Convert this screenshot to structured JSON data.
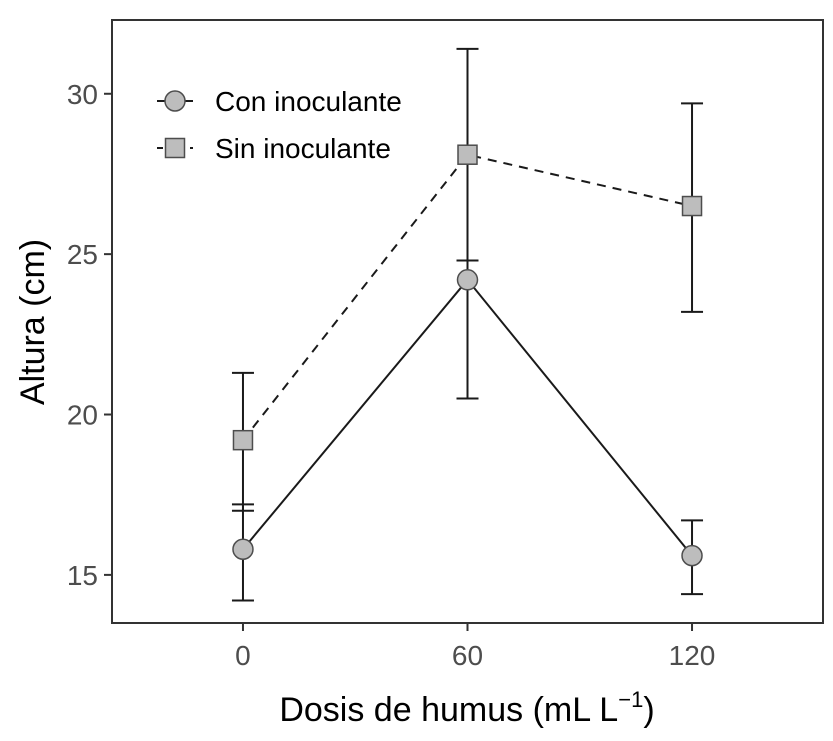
{
  "chart_data": {
    "type": "line",
    "title": "",
    "x": [
      0,
      60,
      120
    ],
    "xlabel": "Dosis de humus (mL L",
    "xlabel_superscript": "−1",
    "xlabel_suffix": ")",
    "ylabel": "Altura (cm)",
    "xlim": [
      -35,
      155
    ],
    "ylim": [
      13.5,
      32.3
    ],
    "xticks": [
      "0",
      "60",
      "120"
    ],
    "yticks": [
      "15",
      "20",
      "25",
      "30"
    ],
    "grid": false,
    "legend_position": "top-left",
    "series": [
      {
        "name": "Con inoculante",
        "marker": "circle",
        "line": "solid",
        "values": [
          15.8,
          24.2,
          15.6
        ],
        "err_low": [
          14.2,
          20.5,
          14.4
        ],
        "err_high": [
          17.2,
          24.8,
          16.7
        ]
      },
      {
        "name": "Sin inoculante",
        "marker": "square",
        "line": "dashed",
        "values": [
          19.2,
          28.1,
          26.5
        ],
        "err_low": [
          17.0,
          24.8,
          23.2
        ],
        "err_high": [
          21.3,
          31.4,
          29.7
        ]
      }
    ]
  },
  "colors": {
    "line": "#1a1a1a",
    "marker_fill": "#bdbdbd",
    "marker_stroke": "#4d4d4d",
    "axis": "#333333",
    "tick_text": "#4d4d4d"
  }
}
